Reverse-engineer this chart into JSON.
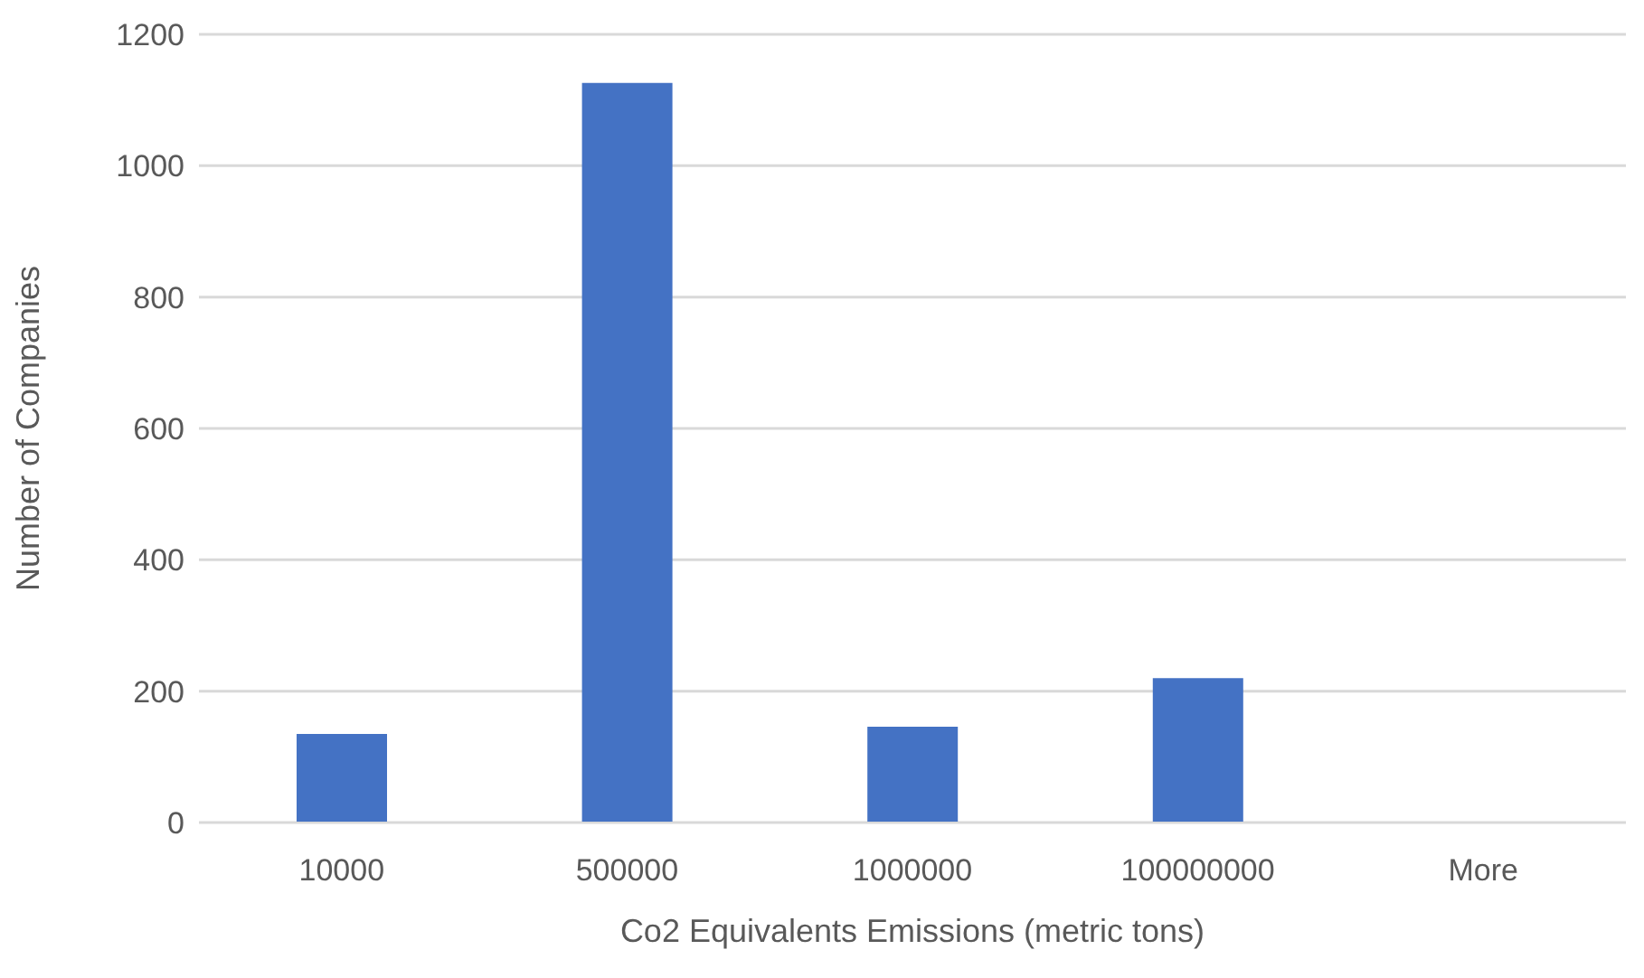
{
  "chart_data": {
    "type": "bar",
    "xlabel": "Co2 Equivalents Emissions (metric tons)",
    "ylabel": "Number of Companies",
    "categories": [
      "10000",
      "500000",
      "1000000",
      "100000000",
      "More"
    ],
    "values": [
      135,
      1126,
      146,
      220,
      0
    ],
    "color": "#4472c4",
    "ylim": [
      0,
      1200
    ],
    "yticks": [
      0,
      200,
      400,
      600,
      800,
      1000,
      1200
    ],
    "grid": "y"
  }
}
